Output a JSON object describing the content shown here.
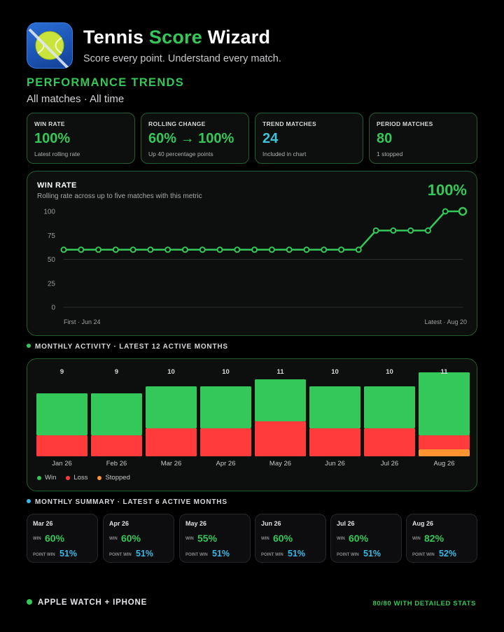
{
  "app": {
    "title_part1": "Tennis ",
    "title_part2": "Score ",
    "title_part3": "Wizard",
    "subtitle": "Score every point. Understand every match.",
    "icon": "tennis-ball-icon"
  },
  "section": {
    "title": "PERFORMANCE TRENDS",
    "filter": "All matches · All time"
  },
  "stats": [
    {
      "label": "WIN RATE",
      "value": "100%",
      "note": "Latest rolling rate",
      "color": "#34c759"
    },
    {
      "label": "ROLLING CHANGE",
      "value": "60% → 100%",
      "note": "Up 40 percentage points",
      "color": "#34c759"
    },
    {
      "label": "TREND MATCHES",
      "value": "24",
      "note": "Included in chart",
      "color": "#3ec4d8"
    },
    {
      "label": "PERIOD MATCHES",
      "value": "80",
      "note": "1 stopped",
      "color": "#34c759"
    }
  ],
  "trend": {
    "title": "WIN RATE",
    "subtitle": "Rolling rate across up to five matches with this metric",
    "current": "100%",
    "first_label": "First · Jun 24",
    "latest_label": "Latest · Aug 20"
  },
  "monthly_activity": {
    "title": "MONTHLY ACTIVITY · LATEST 12 ACTIVE MONTHS",
    "legend": [
      {
        "label": "Win",
        "color": "#34c759"
      },
      {
        "label": "Loss",
        "color": "#ff3b3b"
      },
      {
        "label": "Stopped",
        "color": "#ff9430"
      }
    ]
  },
  "monthly_summary": {
    "title": "MONTHLY SUMMARY · LATEST 6 ACTIVE MONTHS",
    "win_label": "WIN",
    "point_label": "POINT WIN",
    "months": [
      {
        "month": "Mar 26",
        "win": "60%",
        "point_win": "51%"
      },
      {
        "month": "Apr 26",
        "win": "60%",
        "point_win": "51%"
      },
      {
        "month": "May 26",
        "win": "55%",
        "point_win": "51%"
      },
      {
        "month": "Jun 26",
        "win": "60%",
        "point_win": "51%"
      },
      {
        "month": "Jul 26",
        "win": "60%",
        "point_win": "51%"
      },
      {
        "month": "Aug 26",
        "win": "82%",
        "point_win": "52%"
      }
    ]
  },
  "footer": {
    "left": "APPLE WATCH + IPHONE",
    "right": "80/80 WITH DETAILED STATS"
  },
  "chart_data": [
    {
      "type": "line",
      "title": "WIN RATE",
      "ylim": [
        0,
        100
      ],
      "yticks": [
        0,
        25,
        50,
        75,
        100
      ],
      "grid": true,
      "x": [
        1,
        2,
        3,
        4,
        5,
        6,
        7,
        8,
        9,
        10,
        11,
        12,
        13,
        14,
        15,
        16,
        17,
        18,
        19,
        20,
        21,
        22,
        23,
        24
      ],
      "series": [
        {
          "values": [
            60,
            60,
            60,
            60,
            60,
            60,
            60,
            60,
            60,
            60,
            60,
            60,
            60,
            60,
            60,
            60,
            60,
            60,
            80,
            80,
            80,
            80,
            100,
            100
          ]
        }
      ],
      "color": "#34c759"
    },
    {
      "type": "bar",
      "title": "MONTHLY ACTIVITY · LATEST 12 ACTIVE MONTHS",
      "categories": [
        "Jan 26",
        "Feb 26",
        "Mar 26",
        "Apr 26",
        "May 26",
        "Jun 26",
        "Jul 26",
        "Aug 26"
      ],
      "totals": [
        9,
        9,
        10,
        10,
        11,
        10,
        10,
        11
      ],
      "series": [
        {
          "name": "Win",
          "values": [
            6,
            6,
            6,
            6,
            6,
            6,
            6,
            9
          ],
          "color": "#34c759"
        },
        {
          "name": "Loss",
          "values": [
            3,
            3,
            4,
            4,
            5,
            4,
            4,
            2
          ],
          "color": "#ff3b3b"
        },
        {
          "name": "Stopped",
          "values": [
            0,
            0,
            0,
            0,
            0,
            0,
            0,
            1
          ],
          "color": "#ff9430"
        }
      ],
      "stacked": true,
      "legend": "bottom-left"
    }
  ]
}
